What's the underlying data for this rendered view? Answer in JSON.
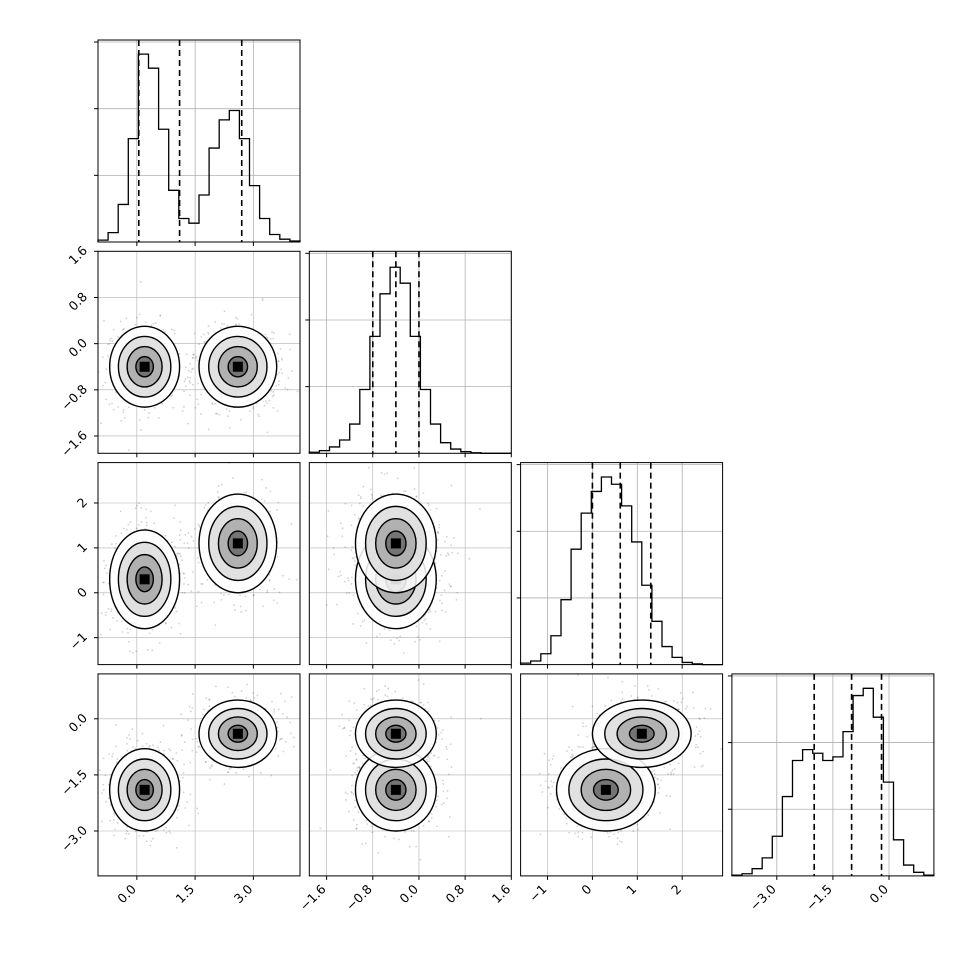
{
  "chart_data": {
    "type": "corner",
    "description_of_layout": "4 parameters, lower-triangular matrix of 2D density plots with 1D histograms on the diagonal",
    "colors": {
      "hist": "#000000",
      "points": "#000000",
      "grid": "#b0b0b0",
      "density": "#000000"
    },
    "grid": true,
    "parameters": [
      {
        "range": [
          -1.0,
          4.2
        ],
        "ticks": [
          0.0,
          1.5,
          3.0
        ],
        "tick_labels": [
          "0.0",
          "1.5",
          "3.0"
        ],
        "quantiles": [
          0.05,
          1.1,
          2.7
        ],
        "y_ticks": [
          -1.6,
          -0.8,
          0.0,
          0.8,
          1.6
        ],
        "y_tick_labels": [
          "−1.6",
          "−0.8",
          "0.0",
          "0.8",
          "1.6"
        ]
      },
      {
        "range": [
          -1.9,
          1.6
        ],
        "ticks": [
          -1.6,
          -0.8,
          0.0,
          0.8,
          1.6
        ],
        "tick_labels": [
          "−1.6",
          "−0.8",
          "0.0",
          "0.8",
          "1.6"
        ],
        "quantiles": [
          -0.8,
          -0.4,
          0.0
        ]
      },
      {
        "range": [
          -1.6,
          2.9
        ],
        "ticks": [
          -1,
          0,
          1,
          2
        ],
        "tick_labels": [
          "−1",
          "0",
          "1",
          "2"
        ],
        "quantiles": [
          0.0,
          0.62,
          1.3
        ]
      },
      {
        "range": [
          -4.2,
          1.2
        ],
        "ticks": [
          -3.0,
          -1.5,
          0.0
        ],
        "tick_labels": [
          "−3.0",
          "−1.5",
          "0.0"
        ],
        "quantiles": [
          -2.0,
          -1.0,
          -0.2
        ]
      }
    ],
    "histograms": [
      {
        "param": 0,
        "bins": [
          -1.0,
          -0.74,
          -0.48,
          -0.22,
          0.04,
          0.3,
          0.56,
          0.82,
          1.08,
          1.34,
          1.6,
          1.86,
          2.12,
          2.38,
          2.64,
          2.9,
          3.16,
          3.42,
          3.68,
          3.94,
          4.2
        ],
        "counts": [
          2,
          10,
          40,
          110,
          200,
          185,
          120,
          55,
          25,
          20,
          50,
          100,
          130,
          140,
          110,
          60,
          25,
          8,
          3,
          1
        ],
        "ymax": 215
      },
      {
        "param": 1,
        "bins": [
          -1.9,
          -1.725,
          -1.55,
          -1.375,
          -1.2,
          -1.025,
          -0.85,
          -0.675,
          -0.5,
          -0.325,
          -0.15,
          0.025,
          0.2,
          0.375,
          0.55,
          0.725,
          0.9,
          1.075,
          1.25,
          1.425,
          1.6
        ],
        "counts": [
          2,
          5,
          12,
          25,
          55,
          120,
          220,
          300,
          350,
          320,
          220,
          120,
          55,
          20,
          8,
          3,
          1,
          0,
          0,
          0
        ],
        "ymax": 380
      },
      {
        "param": 2,
        "bins": [
          -1.6,
          -1.375,
          -1.15,
          -0.925,
          -0.7,
          -0.475,
          -0.25,
          -0.025,
          0.2,
          0.425,
          0.65,
          0.875,
          1.1,
          1.325,
          1.55,
          1.775,
          2.0,
          2.225,
          2.45,
          2.675,
          2.9
        ],
        "counts": [
          2,
          5,
          15,
          40,
          90,
          160,
          210,
          240,
          260,
          250,
          220,
          170,
          110,
          60,
          25,
          10,
          3,
          1,
          0,
          0
        ],
        "ymax": 280
      },
      {
        "param": 3,
        "bins": [
          -4.2,
          -3.93,
          -3.66,
          -3.39,
          -3.12,
          -2.85,
          -2.58,
          -2.31,
          -2.04,
          -1.77,
          -1.5,
          -1.23,
          -0.96,
          -0.69,
          -0.42,
          -0.15,
          0.12,
          0.39,
          0.66,
          0.93,
          1.2
        ],
        "counts": [
          1,
          3,
          10,
          25,
          55,
          110,
          160,
          175,
          170,
          160,
          165,
          200,
          250,
          260,
          220,
          130,
          50,
          15,
          5,
          1
        ],
        "ymax": 280
      }
    ],
    "joint_components": [
      {
        "mean": [
          0.2,
          -0.4,
          0.3,
          -1.9
        ],
        "sd": [
          0.45,
          0.35,
          0.55,
          0.55
        ],
        "weight": 0.5
      },
      {
        "mean": [
          2.6,
          -0.4,
          1.1,
          -0.4
        ],
        "sd": [
          0.5,
          0.35,
          0.55,
          0.45
        ],
        "weight": 0.5
      }
    ]
  }
}
